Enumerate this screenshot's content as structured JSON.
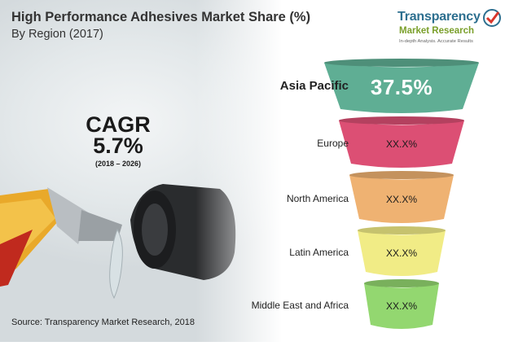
{
  "header": {
    "title": "High Performance Adhesives Market Share (%)",
    "subtitle": "By Region (2017)"
  },
  "logo": {
    "line1": "Transparency",
    "line2": "Market Research",
    "tagline": "In-depth Analysis. Accurate Results"
  },
  "cagr": {
    "label": "CAGR",
    "value": "5.7%",
    "period": "(2018 – 2026)"
  },
  "source": "Source: Transparency Market Research, 2018",
  "chart_data": {
    "type": "funnel",
    "title": "High Performance Adhesives Market Share (%)",
    "subtitle": "By Region (2017)",
    "categories": [
      "Asia Pacific",
      "Europe",
      "North America",
      "Latin America",
      "Middle East and Africa"
    ],
    "values": [
      37.5,
      null,
      null,
      null,
      null
    ],
    "value_labels": [
      "37.5%",
      "XX.X%",
      "XX.X%",
      "XX.X%",
      "XX.X%"
    ],
    "colors": [
      "#5fae94",
      "#dc4f74",
      "#efb272",
      "#f1ec86",
      "#93d770"
    ]
  }
}
